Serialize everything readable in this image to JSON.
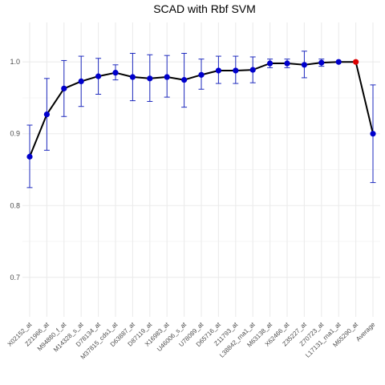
{
  "chart_data": {
    "type": "line",
    "title": "SCAD with Rbf SVM",
    "xlabel": "",
    "ylabel": "",
    "ylim": [
      0.645,
      1.055
    ],
    "yticks": [
      0.7,
      0.8,
      0.9,
      1.0
    ],
    "ytick_labels": [
      "0.7",
      "0.8",
      "0.9",
      "1.0"
    ],
    "grid": true,
    "legend": "none",
    "colors": {
      "line": "#000000",
      "point": "#0000cc",
      "highlight_point": "#dd0000",
      "error_bar": "#1f2bbf",
      "grid": "#ebebeb"
    },
    "categories": [
      "X02152_at",
      "Z21966_at",
      "M94880_f_at",
      "M14328_s_at",
      "D78134_at",
      "M37815_cds1_at",
      "D63887_at",
      "D87119_at",
      "X16983_at",
      "U46006_s_at",
      "U78089_at",
      "D65716_at",
      "Z11793_at",
      "L38842_rna1_at",
      "M63138_at",
      "X62466_at",
      "Z35227_at",
      "Z70723_at",
      "L17131_rna1_at",
      "M65290_at",
      "Average"
    ],
    "values": [
      0.868,
      0.927,
      0.963,
      0.973,
      0.98,
      0.985,
      0.979,
      0.977,
      0.979,
      0.975,
      0.982,
      0.988,
      0.988,
      0.989,
      0.998,
      0.998,
      0.996,
      0.999,
      1.0,
      1.0,
      0.9
    ],
    "lower": [
      0.825,
      0.877,
      0.924,
      0.938,
      0.955,
      0.975,
      0.946,
      0.945,
      0.951,
      0.937,
      0.962,
      0.97,
      0.97,
      0.971,
      0.992,
      0.992,
      0.978,
      0.994,
      1.0,
      1.0,
      0.832
    ],
    "upper": [
      0.912,
      0.977,
      1.002,
      1.008,
      1.005,
      0.996,
      1.012,
      1.01,
      1.009,
      1.012,
      1.004,
      1.008,
      1.008,
      1.007,
      1.004,
      1.004,
      1.015,
      1.004,
      1.0,
      1.0,
      0.968
    ],
    "highlight_index": 19
  }
}
